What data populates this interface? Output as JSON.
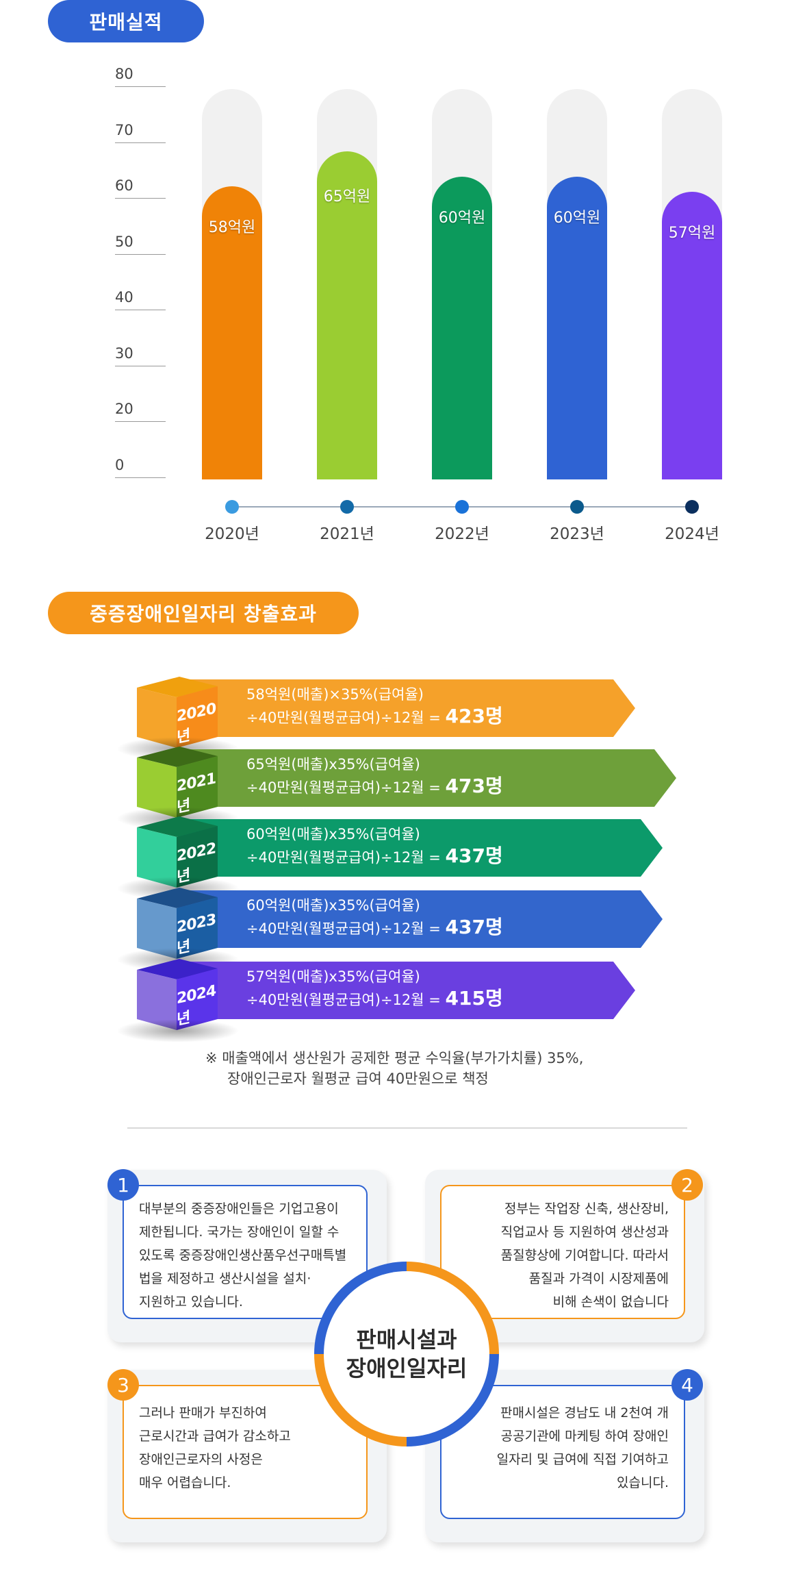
{
  "section1": {
    "title": "판매실적"
  },
  "section2": {
    "title": "중증장애인일자리 창출효과"
  },
  "chart_data": {
    "type": "bar",
    "title": "판매실적",
    "categories": [
      "2020년",
      "2021년",
      "2022년",
      "2023년",
      "2024년"
    ],
    "values": [
      58,
      65,
      60,
      60,
      57
    ],
    "value_labels": [
      "58억원",
      "65억원",
      "60억원",
      "60억원",
      "57억원"
    ],
    "yticks": [
      "80",
      "70",
      "60",
      "50",
      "40",
      "30",
      "20",
      "0"
    ],
    "ylim": [
      0,
      80
    ],
    "grid": false,
    "colors": [
      "#f08307",
      "#9acd32",
      "#0c9a5c",
      "#2f63d3",
      "#7a3ff0"
    ],
    "dot_colors": [
      "#3a9be0",
      "#136aa8",
      "#1a72d8",
      "#0b5a8c",
      "#0b2f5e"
    ]
  },
  "jobs": [
    {
      "year": "2020년",
      "line1": "58억원(매출)×35%(급여율)",
      "line2": "÷40만원(월평균급여)÷12월 =",
      "result": "423명",
      "color": "#f5a12a",
      "cube_top": "#f0a00e",
      "cube_side": "#f78c1a",
      "cube_front": "#f5a42a"
    },
    {
      "year": "2021년",
      "line1": "65억원(매출)x35%(급여율)",
      "line2": "÷40만원(월평균급여)÷12월 =",
      "result": "473명",
      "color": "#6ea03a",
      "cube_top": "#3d6b17",
      "cube_side": "#4e8a1f",
      "cube_front": "#9acd32"
    },
    {
      "year": "2022년",
      "line1": "60억원(매출)x35%(급여율)",
      "line2": "÷40만원(월평균급여)÷12월 =",
      "result": "437명",
      "color": "#0c9a6a",
      "cube_top": "#0d7a4a",
      "cube_side": "#0b7047",
      "cube_front": "#32cf9b"
    },
    {
      "year": "2023년",
      "line1": "60억원(매출)x35%(급여율)",
      "line2": "÷40만원(월평균급여)÷12월 =",
      "result": "437명",
      "color": "#3366cc",
      "cube_top": "#1c4f8a",
      "cube_side": "#1b5ea3",
      "cube_front": "#6699cc"
    },
    {
      "year": "2024년",
      "line1": "57억원(매출)x35%(급여율)",
      "line2": "÷40만원(월평균급여)÷12월 =",
      "result": "415명",
      "color": "#6a3fe0",
      "cube_top": "#3b22c9",
      "cube_side": "#5a34ea",
      "cube_front": "#8a70dd"
    }
  ],
  "note": {
    "line1": "※ 매출액에서 생산원가 공제한 평균 수익율(부가가치률) 35%,",
    "line2": "장애인근로자 월평균 급여 40만원으로 책정"
  },
  "center": {
    "line1": "판매시설과",
    "line2": "장애인일자리"
  },
  "cards": [
    {
      "num": "1",
      "lines": [
        "대부분의 중증장애인들은 기업고용이",
        "제한됩니다.  국가는 장애인이 일할 수",
        "있도록 중증장애인생산품우선구매특별",
        "법을 제정하고 생산시설을 설치·",
        "지원하고 있습니다."
      ]
    },
    {
      "num": "2",
      "lines": [
        "정부는 작업장 신축, 생산장비,",
        "직업교사 등 지원하여 생산성과",
        "품질향상에 기여합니다. 따라서",
        "품질과 가격이 시장제품에",
        "비해 손색이 없습니다"
      ]
    },
    {
      "num": "3",
      "lines": [
        "그러나 판매가 부진하여",
        "근로시간과 급여가 감소하고",
        "장애인근로자의 사정은",
        "매우 어렵습니다."
      ]
    },
    {
      "num": "4",
      "lines": [
        "판매시설은 경남도 내 2천여 개",
        "공공기관에 마케팅 하여 장애인",
        "일자리 및 급여에 직접 기여하고",
        "있습니다."
      ]
    }
  ],
  "colors": {
    "blue": "#2f63d3",
    "orange": "#f5961b"
  }
}
